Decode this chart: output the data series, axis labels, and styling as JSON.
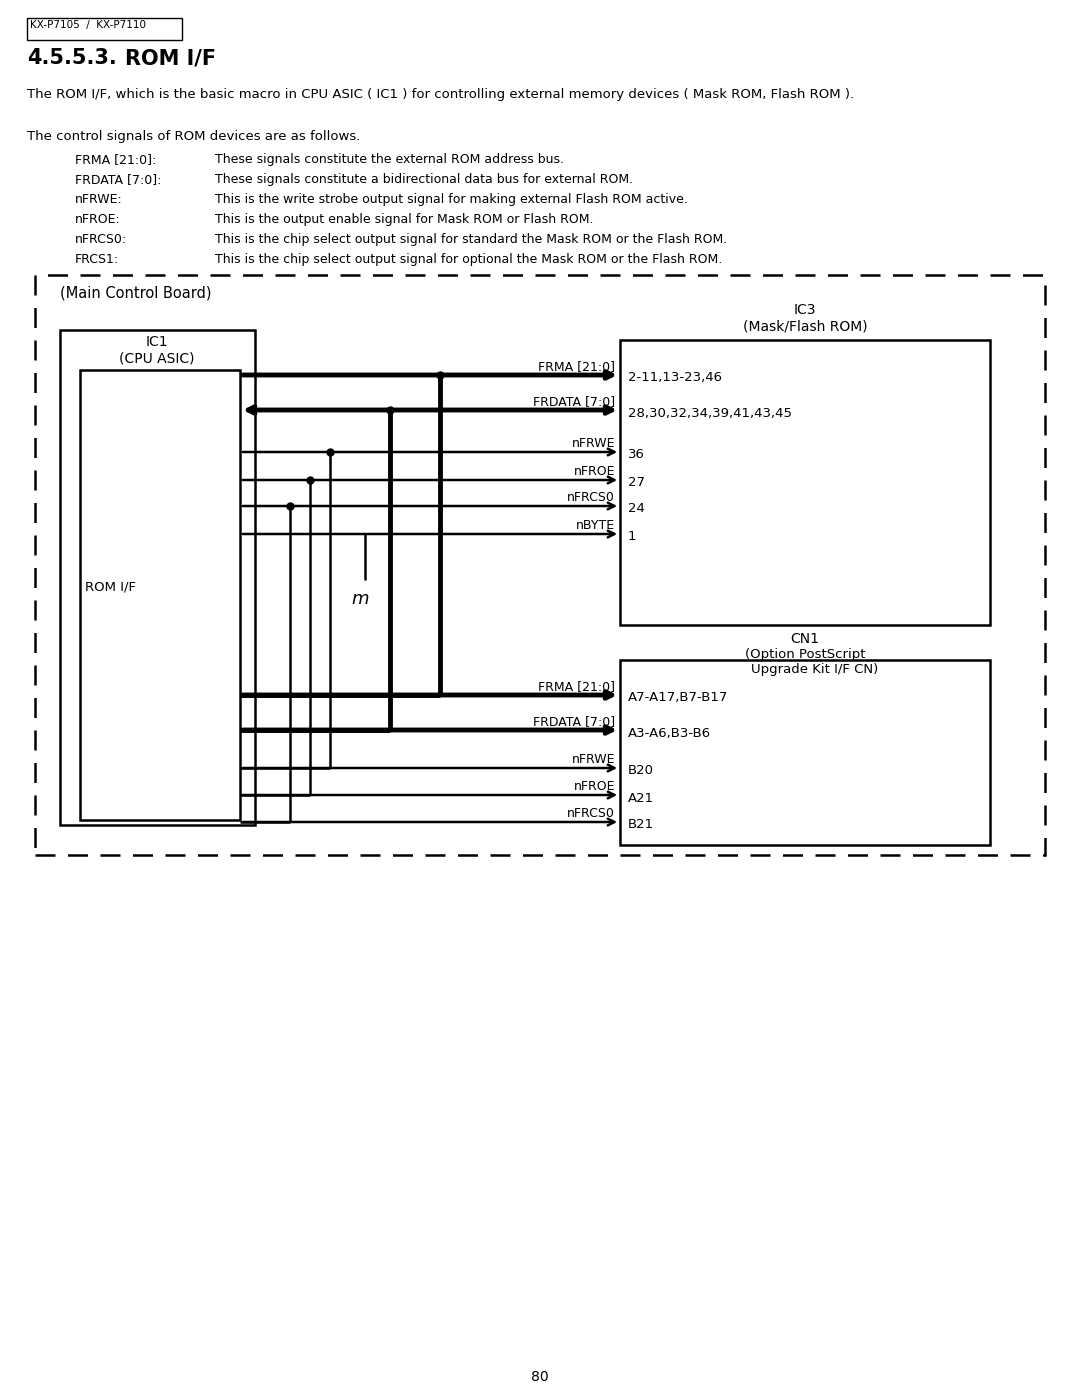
{
  "page_num": "80",
  "header_text": "KX-P7105  /  KX-P7110",
  "section": "4.5.5.3.",
  "section_title": "ROM I/F",
  "intro_text": "The ROM I/F, which is the basic macro in CPU ASIC ( IC1 ) for controlling external memory devices ( Mask ROM, Flash ROM ).",
  "signals_intro": "The control signals of ROM devices are as follows.",
  "signals": [
    [
      "FRMA [21:0]:",
      "These signals constitute the external ROM address bus."
    ],
    [
      "FRDATA [7:0]:",
      "These signals constitute a bidirectional data bus for external ROM."
    ],
    [
      "nFRWE:",
      "This is the write strobe output signal for making external Flash ROM active."
    ],
    [
      "nFROE:",
      "This is the output enable signal for Mask ROM or Flash ROM."
    ],
    [
      "nFRCS0:",
      "This is the chip select output signal for standard the Mask ROM or the Flash ROM."
    ],
    [
      "FRCS1:",
      "This is the chip select output signal for optional the Mask ROM or the Flash ROM."
    ]
  ],
  "bg_color": "#ffffff",
  "text_color": "#000000"
}
